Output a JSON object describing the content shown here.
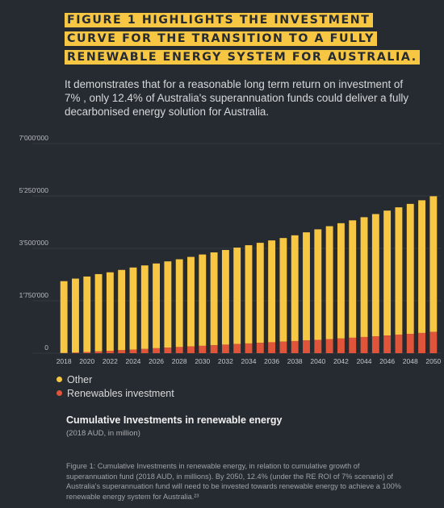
{
  "header": {
    "title": "FIGURE 1 HIGHLIGHTS THE INVESTMENT CURVE FOR THE TRANSITION TO A FULLY RENEWABLE ENERGY SYSTEM FOR AUSTRALIA.",
    "intro": "It demonstrates that for a reasonable long term return on investment of 7% , only 12.4% of Australia's superannuation funds could deliver a fully decarbonised energy solution for Australia."
  },
  "colors": {
    "background": "#262b31",
    "other": "#f7c744",
    "renewables": "#e0553a",
    "headline_bg": "#f7c744"
  },
  "chart_data": {
    "type": "bar",
    "stacked": true,
    "x": [
      2018,
      2019,
      2020,
      2021,
      2022,
      2023,
      2024,
      2025,
      2026,
      2027,
      2028,
      2029,
      2030,
      2031,
      2032,
      2033,
      2034,
      2035,
      2036,
      2037,
      2038,
      2039,
      2040,
      2041,
      2042,
      2043,
      2044,
      2045,
      2046,
      2047,
      2048,
      2049,
      2050
    ],
    "xticks": [
      "2018",
      "2020",
      "2022",
      "2024",
      "2026",
      "2028",
      "2030",
      "2032",
      "2034",
      "2036",
      "2038",
      "2040",
      "2042",
      "2044",
      "2046",
      "2048",
      "2050"
    ],
    "yticks": [
      {
        "value": 0,
        "label": "0"
      },
      {
        "value": 1750000,
        "label": "1'750'000"
      },
      {
        "value": 3500000,
        "label": "3'500'000"
      },
      {
        "value": 5250000,
        "label": "5'250'000"
      },
      {
        "value": 7000000,
        "label": "7'000'000"
      }
    ],
    "ylim": [
      0,
      7000000
    ],
    "grid": true,
    "legend_position": "bottom-left",
    "series": [
      {
        "name": "Renewables investment",
        "values": [
          5000,
          20000,
          40000,
          60000,
          80000,
          100000,
          120000,
          140000,
          165000,
          185000,
          205000,
          225000,
          245000,
          265000,
          285000,
          305000,
          325000,
          345000,
          365000,
          385000,
          405000,
          425000,
          445000,
          470000,
          490000,
          515000,
          540000,
          565000,
          590000,
          620000,
          645000,
          675000,
          710000
        ]
      },
      {
        "name": "Other",
        "values": [
          2400000,
          2470000,
          2520000,
          2580000,
          2620000,
          2680000,
          2740000,
          2790000,
          2830000,
          2880000,
          2930000,
          2990000,
          3050000,
          3100000,
          3160000,
          3220000,
          3280000,
          3340000,
          3400000,
          3460000,
          3530000,
          3610000,
          3690000,
          3770000,
          3850000,
          3920000,
          4000000,
          4080000,
          4170000,
          4250000,
          4340000,
          4430000,
          4530000
        ]
      }
    ]
  },
  "legend": {
    "items": [
      {
        "label": "Other"
      },
      {
        "label": "Renewables investment"
      }
    ]
  },
  "chart_title": "Cumulative Investments in renewable energy",
  "chart_subtitle": "(2018 AUD, in million)",
  "caption": "Figure 1: Cumulative Investments in renewable energy, in relation to cumulative growth of superannuation fund (2018 AUD, in millions). By 2050, 12.4% (under the RE ROI of 7% scenario) of Australia's superannuation fund will need to be invested towards renewable energy to achieve a 100% renewable energy system for Australia.²³"
}
